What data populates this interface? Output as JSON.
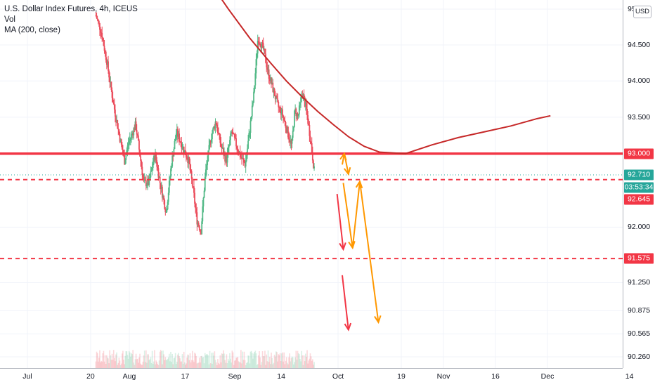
{
  "legend": {
    "symbol": "U.S. Dollar Index Futures, 4h, ICEUS",
    "volume": "Vol",
    "ma": "MA (200, close)"
  },
  "currency": "USD",
  "colors": {
    "up": "#53b987",
    "down": "#eb4d5c",
    "ma": "#c62828",
    "level": "#f23645",
    "orange": "#ff9800",
    "teal": "#26a69a"
  },
  "price_tags": {
    "level_93": "93.000",
    "last": "92.710",
    "countdown": "03:53:34",
    "level_92645": "92.645",
    "level_91575": "91.575"
  },
  "chart_data": {
    "type": "candlestick",
    "title": "U.S. Dollar Index Futures, 4h, ICEUS",
    "ylim": [
      90.1,
      95.1
    ],
    "y_scale": "log",
    "y_ticks": [
      "95.000",
      "94.500",
      "94.000",
      "93.500",
      "92.000",
      "91.250",
      "90.875",
      "90.565",
      "90.260"
    ],
    "x_ticks": [
      "Jul",
      "20",
      "Aug",
      "17",
      "Sep",
      "14",
      "Oct",
      "19",
      "Nov",
      "16",
      "Dec",
      "14"
    ],
    "close_path": [
      [
        0,
        94.95
      ],
      [
        0.06,
        94.7
      ],
      [
        0.12,
        94.25
      ],
      [
        0.18,
        93.7
      ],
      [
        0.24,
        93.25
      ],
      [
        0.29,
        92.9
      ],
      [
        0.33,
        93.15
      ],
      [
        0.4,
        93.4
      ],
      [
        0.44,
        93.0
      ],
      [
        0.48,
        92.6
      ],
      [
        0.53,
        92.6
      ],
      [
        0.59,
        93.0
      ],
      [
        0.64,
        92.6
      ],
      [
        0.7,
        92.2
      ],
      [
        0.75,
        92.85
      ],
      [
        0.8,
        93.3
      ],
      [
        0.86,
        93.1
      ],
      [
        0.92,
        92.9
      ],
      [
        0.97,
        92.45
      ],
      [
        1.0,
        92.1
      ],
      [
        1.04,
        91.95
      ],
      [
        1.08,
        92.7
      ],
      [
        1.13,
        93.2
      ],
      [
        1.18,
        93.45
      ],
      [
        1.23,
        93.1
      ],
      [
        1.28,
        92.9
      ],
      [
        1.33,
        93.3
      ],
      [
        1.38,
        93.1
      ],
      [
        1.42,
        92.95
      ],
      [
        1.46,
        92.85
      ],
      [
        1.5,
        93.3
      ],
      [
        1.54,
        93.8
      ],
      [
        1.58,
        94.6
      ],
      [
        1.63,
        94.45
      ],
      [
        1.68,
        94.1
      ],
      [
        1.72,
        93.9
      ],
      [
        1.77,
        93.65
      ],
      [
        1.81,
        93.55
      ],
      [
        1.85,
        93.35
      ],
      [
        1.9,
        93.1
      ],
      [
        1.93,
        93.6
      ],
      [
        1.96,
        93.5
      ],
      [
        2.0,
        93.85
      ],
      [
        2.04,
        93.6
      ],
      [
        2.08,
        93.2
      ],
      [
        2.12,
        92.72
      ]
    ],
    "volume": "lowbars",
    "series": [
      {
        "name": "MA (200, close)",
        "x": [
          1.16,
          1.3,
          1.5,
          1.7,
          1.85,
          2.0,
          2.15,
          2.3,
          2.45,
          2.6,
          2.75,
          3.0,
          3.25,
          3.5,
          3.75,
          4.0,
          4.25,
          4.38
        ],
        "y": [
          95.3,
          95.0,
          94.6,
          94.25,
          94.0,
          93.78,
          93.58,
          93.4,
          93.23,
          93.1,
          93.02,
          93.0,
          93.12,
          93.22,
          93.3,
          93.38,
          93.48,
          93.52
        ],
        "x_unit": "months_since_Jul"
      }
    ],
    "horizontal_levels": [
      {
        "price": 93.0,
        "style": "solid",
        "label": "93.000"
      },
      {
        "price": 92.645,
        "style": "dashed",
        "label": "92.645"
      },
      {
        "price": 91.575,
        "style": "dashed",
        "label": "91.575"
      }
    ],
    "last_price": 92.71,
    "projection_arrows": [
      {
        "color": "orange",
        "from": [
          2.17,
          92.85
        ],
        "to": [
          2.19,
          93.0
        ]
      },
      {
        "color": "orange",
        "from": [
          2.19,
          93.0
        ],
        "to": [
          2.23,
          92.72
        ]
      },
      {
        "color": "red",
        "from": [
          2.12,
          92.45
        ],
        "to": [
          2.18,
          91.7
        ]
      },
      {
        "color": "orange",
        "from": [
          2.18,
          92.6
        ],
        "to": [
          2.27,
          91.72
        ]
      },
      {
        "color": "orange",
        "from": [
          2.27,
          91.72
        ],
        "to": [
          2.34,
          92.62
        ]
      },
      {
        "color": "orange",
        "from": [
          2.34,
          92.62
        ],
        "to": [
          2.52,
          90.72
        ]
      },
      {
        "color": "red",
        "from": [
          2.17,
          91.35
        ],
        "to": [
          2.23,
          90.62
        ]
      }
    ]
  }
}
